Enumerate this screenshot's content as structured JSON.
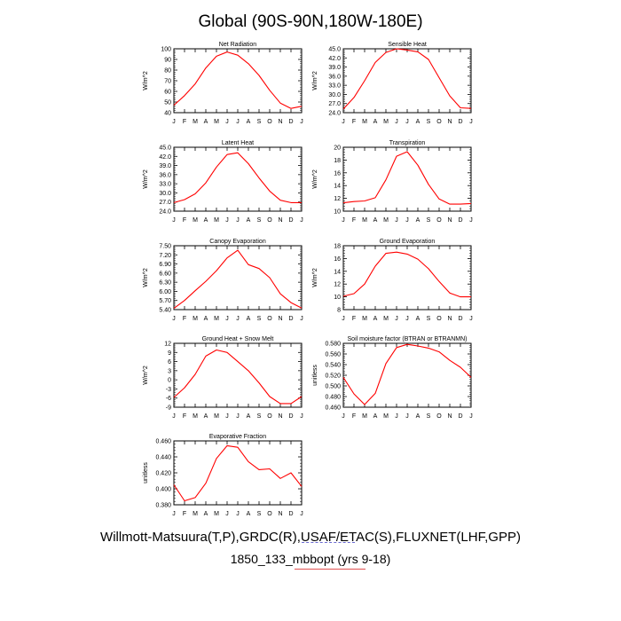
{
  "title": "Global (90S-90N,180W-180E)",
  "footer": {
    "line1": "Willmott-Matsuura(T,P),GRDC(R),USAF/ETAC(S),FLUXNET(LHF,GPP)",
    "line2": "1850_133_mbbopt (yrs 9-18)"
  },
  "colors": {
    "line": "#ff0000",
    "axis": "#000000"
  },
  "chart_data": [
    {
      "type": "line",
      "title": "Net Radiation",
      "ylabel": "W/m^2",
      "categories": [
        "J",
        "F",
        "M",
        "A",
        "M",
        "J",
        "J",
        "A",
        "S",
        "O",
        "N",
        "D",
        "J"
      ],
      "ylim": [
        40,
        100
      ],
      "yticks": [
        "40",
        "50",
        "60",
        "70",
        "80",
        "90",
        "100"
      ],
      "values": [
        47,
        56,
        67,
        82,
        93,
        97,
        94,
        86,
        75,
        61,
        49,
        44,
        46
      ]
    },
    {
      "type": "line",
      "title": "Sensible Heat",
      "ylabel": "W/m^2",
      "categories": [
        "J",
        "F",
        "M",
        "A",
        "M",
        "J",
        "J",
        "A",
        "S",
        "O",
        "N",
        "D",
        "J"
      ],
      "ylim": [
        24,
        45
      ],
      "yticks": [
        "24.0",
        "27.0",
        "30.0",
        "33.0",
        "36.0",
        "39.0",
        "42.0",
        "45.0"
      ],
      "values": [
        25.2,
        29.0,
        34.5,
        40.5,
        43.8,
        45.0,
        44.6,
        44.0,
        41.5,
        35.5,
        29.5,
        25.6,
        25.4
      ]
    },
    {
      "type": "line",
      "title": "Latent Heat",
      "ylabel": "W/m^2",
      "categories": [
        "J",
        "F",
        "M",
        "A",
        "M",
        "J",
        "J",
        "A",
        "S",
        "O",
        "N",
        "D",
        "J"
      ],
      "ylim": [
        24,
        45
      ],
      "yticks": [
        "24.0",
        "27.0",
        "30.0",
        "33.0",
        "36.0",
        "39.0",
        "42.0",
        "45.0"
      ],
      "values": [
        26.8,
        27.8,
        29.7,
        33.3,
        38.5,
        42.6,
        43.2,
        39.6,
        34.9,
        30.6,
        27.6,
        26.8,
        26.8
      ]
    },
    {
      "type": "line",
      "title": "Transpiration",
      "ylabel": "W/m^2",
      "categories": [
        "J",
        "F",
        "M",
        "A",
        "M",
        "J",
        "J",
        "A",
        "S",
        "O",
        "N",
        "D",
        "J"
      ],
      "ylim": [
        10,
        20
      ],
      "yticks": [
        "10",
        "12",
        "14",
        "16",
        "18",
        "20"
      ],
      "values": [
        11.3,
        11.5,
        11.6,
        12.1,
        14.9,
        18.6,
        19.3,
        17.2,
        14.2,
        11.9,
        11.1,
        11.1,
        11.2
      ]
    },
    {
      "type": "line",
      "title": "Canopy Evaporation",
      "ylabel": "W/m^2",
      "categories": [
        "J",
        "F",
        "M",
        "A",
        "M",
        "J",
        "J",
        "A",
        "S",
        "O",
        "N",
        "D",
        "J"
      ],
      "ylim": [
        5.4,
        7.5
      ],
      "yticks": [
        "5.40",
        "5.70",
        "6.00",
        "6.30",
        "6.60",
        "6.90",
        "7.20",
        "7.50"
      ],
      "values": [
        5.44,
        5.7,
        6.02,
        6.33,
        6.68,
        7.1,
        7.35,
        6.88,
        6.75,
        6.45,
        5.92,
        5.63,
        5.45
      ]
    },
    {
      "type": "line",
      "title": "Ground Evaporation",
      "ylabel": "W/m^2",
      "categories": [
        "J",
        "F",
        "M",
        "A",
        "M",
        "J",
        "J",
        "A",
        "S",
        "O",
        "N",
        "D",
        "J"
      ],
      "ylim": [
        8,
        18
      ],
      "yticks": [
        "8",
        "10",
        "12",
        "14",
        "16",
        "18"
      ],
      "values": [
        10.1,
        10.5,
        12.0,
        14.8,
        16.8,
        17.0,
        16.7,
        15.9,
        14.4,
        12.4,
        10.6,
        10.0,
        10.0
      ]
    },
    {
      "type": "line",
      "title": "Ground Heat + Snow Melt",
      "ylabel": "W/m^2",
      "categories": [
        "J",
        "F",
        "M",
        "A",
        "M",
        "J",
        "J",
        "A",
        "S",
        "O",
        "N",
        "D",
        "J"
      ],
      "ylim": [
        -9,
        12
      ],
      "yticks": [
        "-9",
        "-6",
        "-3",
        "0",
        "3",
        "6",
        "9",
        "12"
      ],
      "values": [
        -5.8,
        -2.6,
        1.8,
        7.8,
        9.8,
        9.0,
        6.0,
        3.0,
        -1.0,
        -5.5,
        -7.8,
        -7.8,
        -5.5
      ]
    },
    {
      "type": "line",
      "title": "Soil moisture factor (BTRAN or BTRANMN)",
      "ylabel": "unitless",
      "categories": [
        "J",
        "F",
        "M",
        "A",
        "M",
        "J",
        "J",
        "A",
        "S",
        "O",
        "N",
        "D",
        "J"
      ],
      "ylim": [
        0.46,
        0.58
      ],
      "yticks": [
        "0.460",
        "0.480",
        "0.500",
        "0.520",
        "0.540",
        "0.560",
        "0.580"
      ],
      "values": [
        0.516,
        0.485,
        0.465,
        0.486,
        0.542,
        0.572,
        0.578,
        0.575,
        0.571,
        0.564,
        0.548,
        0.535,
        0.516
      ]
    },
    {
      "type": "line",
      "title": "Evaporative Fraction",
      "ylabel": "unitless",
      "categories": [
        "J",
        "F",
        "M",
        "A",
        "M",
        "J",
        "J",
        "A",
        "S",
        "O",
        "N",
        "D",
        "J"
      ],
      "ylim": [
        0.38,
        0.46
      ],
      "yticks": [
        "0.380",
        "0.400",
        "0.420",
        "0.440",
        "0.460"
      ],
      "values": [
        0.405,
        0.385,
        0.389,
        0.407,
        0.438,
        0.454,
        0.452,
        0.434,
        0.424,
        0.425,
        0.413,
        0.42,
        0.403
      ]
    }
  ]
}
